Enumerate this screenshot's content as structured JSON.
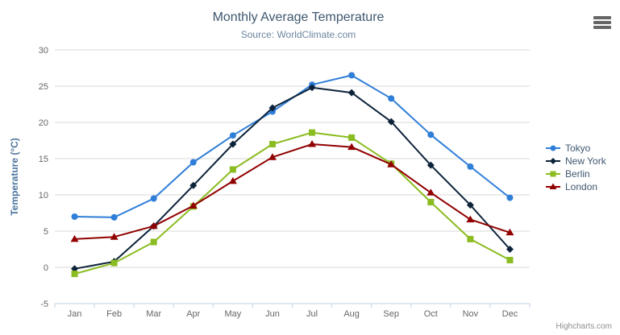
{
  "chart": {
    "title": "Monthly Average Temperature",
    "subtitle": "Source: WorldClimate.com",
    "credits": "Highcharts.com"
  },
  "chart_data": {
    "type": "line",
    "title": "Monthly Average Temperature",
    "subtitle": "Source: WorldClimate.com",
    "categories": [
      "Jan",
      "Feb",
      "Mar",
      "Apr",
      "May",
      "Jun",
      "Jul",
      "Aug",
      "Sep",
      "Oct",
      "Nov",
      "Dec"
    ],
    "series": [
      {
        "name": "Tokyo",
        "color": "#2f7ed8",
        "symbol": "circle",
        "values": [
          7.0,
          6.9,
          9.5,
          14.5,
          18.2,
          21.5,
          25.2,
          26.5,
          23.3,
          18.3,
          13.9,
          9.6
        ]
      },
      {
        "name": "New York",
        "color": "#0d233a",
        "symbol": "diamond",
        "values": [
          -0.2,
          0.8,
          5.7,
          11.3,
          17.0,
          22.0,
          24.8,
          24.1,
          20.1,
          14.1,
          8.6,
          2.5
        ]
      },
      {
        "name": "Berlin",
        "color": "#8bbc21",
        "symbol": "square",
        "values": [
          -0.9,
          0.6,
          3.5,
          8.4,
          13.5,
          17.0,
          18.6,
          17.9,
          14.3,
          9.0,
          3.9,
          1.0
        ]
      },
      {
        "name": "London",
        "color": "#910000",
        "symbol": "triangle",
        "values": [
          3.9,
          4.2,
          5.7,
          8.5,
          11.9,
          15.2,
          17.0,
          16.6,
          14.2,
          10.3,
          6.6,
          4.8
        ]
      }
    ],
    "xlabel": "",
    "ylabel": "Temperature (°C)",
    "ylim": [
      -5,
      30
    ],
    "ytick_step": 5,
    "grid": true,
    "legend_position": "right"
  },
  "colors": {
    "title_text": "#3E576F",
    "subtitle_text": "#6D869F",
    "axis_label_text": "#666666",
    "axis_title_text": "#4d759e",
    "grid_line": "#D8D8D8",
    "x_axis_line": "#C0D0E0",
    "legend_text": "#3E576F",
    "credits_text": "#909090",
    "menu_icon": "#666666"
  }
}
